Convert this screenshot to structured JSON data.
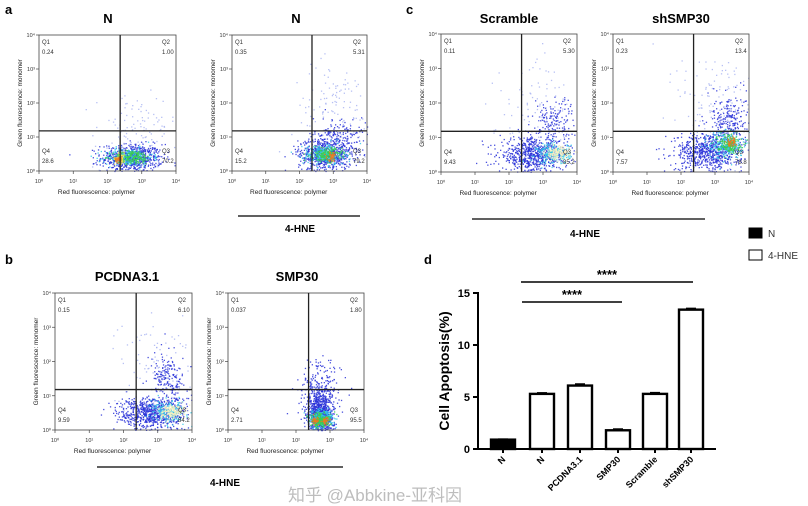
{
  "panel_letters": {
    "a": "a",
    "b": "b",
    "c": "c",
    "d": "d"
  },
  "treatment_label": "4-HNE",
  "flow_axes": {
    "x_title": "Red fluorescence: polymer",
    "y_title": "Green fluorescence: monomer",
    "tick_labels": [
      "10⁰",
      "10¹",
      "10²",
      "10³",
      "10⁴"
    ],
    "x_scale": "log",
    "y_scale": "log",
    "range": [
      "10^0",
      "10^4"
    ]
  },
  "quadrant_names": [
    "Q1",
    "Q2",
    "Q3",
    "Q4"
  ],
  "legend": {
    "items": [
      {
        "label": "N",
        "fill": "#000000"
      },
      {
        "label": "4-HNE",
        "fill": "#ffffff"
      }
    ]
  },
  "watermark": "知乎 @Abbkine-亚科因",
  "chart_data": [
    {
      "type": "bar",
      "panel": "d",
      "categories": [
        "N",
        "N",
        "PCDNA3.1",
        "SMP30",
        "Scramble",
        "shSMP30"
      ],
      "groups": [
        "N",
        "4-HNE",
        "4-HNE",
        "4-HNE",
        "4-HNE",
        "4-HNE"
      ],
      "values": [
        0.9,
        5.3,
        6.1,
        1.8,
        5.3,
        13.4
      ],
      "errors": [
        0.05,
        0.1,
        0.15,
        0.12,
        0.12,
        0.12
      ],
      "ylabel": "Cell Apoptosis(%)",
      "ylim": [
        0,
        15
      ],
      "yticks": [
        "0",
        "5",
        "10",
        "15"
      ],
      "grid": false,
      "legend_position": "top-right",
      "significance": [
        {
          "from": "N",
          "to": "SMP30",
          "label": "****"
        },
        {
          "from": "N",
          "to": "shSMP30",
          "label": "****"
        }
      ]
    },
    {
      "type": "scatter",
      "panel": "a",
      "title": "N",
      "treated": false,
      "quadrants": {
        "Q1": "0.24",
        "Q2": "1.00",
        "Q3": "70.2",
        "Q4": "28.6"
      }
    },
    {
      "type": "scatter",
      "panel": "a",
      "title": "N",
      "treated": true,
      "quadrants": {
        "Q1": "0.35",
        "Q2": "5.31",
        "Q3": "79.2",
        "Q4": "15.2"
      }
    },
    {
      "type": "scatter",
      "panel": "c",
      "title": "Scramble",
      "treated": true,
      "quadrants": {
        "Q1": "0.11",
        "Q2": "5.30",
        "Q3": "85.2",
        "Q4": "9.43"
      }
    },
    {
      "type": "scatter",
      "panel": "c",
      "title": "shSMP30",
      "treated": true,
      "quadrants": {
        "Q1": "0.23",
        "Q2": "13.4",
        "Q3": "78.8",
        "Q4": "7.57"
      }
    },
    {
      "type": "scatter",
      "panel": "b",
      "title": "PCDNA3.1",
      "treated": true,
      "quadrants": {
        "Q1": "0.15",
        "Q2": "6.10",
        "Q3": "84.2",
        "Q4": "9.59"
      }
    },
    {
      "type": "scatter",
      "panel": "b",
      "title": "SMP30",
      "treated": true,
      "quadrants": {
        "Q1": "0.037",
        "Q2": "1.80",
        "Q3": "95.5",
        "Q4": "2.71"
      }
    }
  ]
}
